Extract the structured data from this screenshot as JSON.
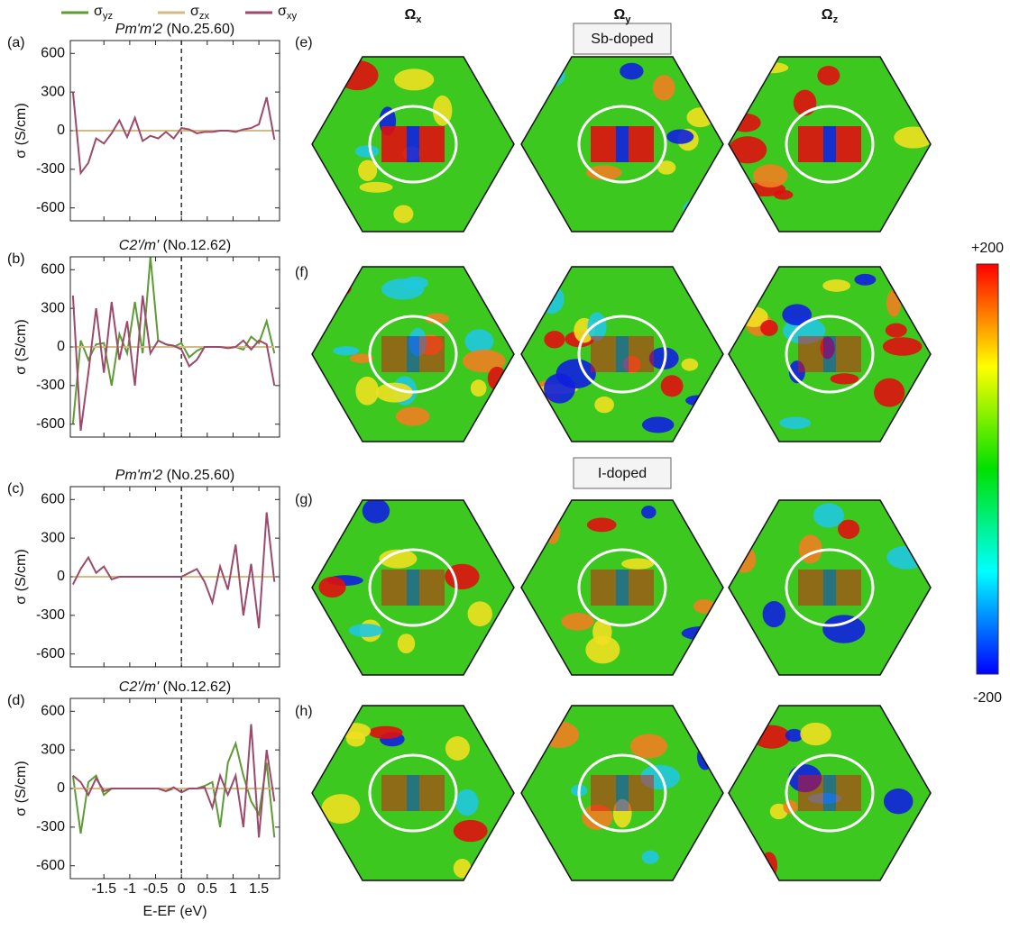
{
  "chart_data": [
    {
      "type": "line",
      "label": "(a)",
      "title": "Pm'm'2 (No.25.60)",
      "y_label": "σ (S/cm)",
      "x": [
        -2.1,
        -1.95,
        -1.8,
        -1.65,
        -1.5,
        -1.35,
        -1.2,
        -1.05,
        -0.9,
        -0.75,
        -0.6,
        -0.45,
        -0.3,
        -0.15,
        0,
        0.15,
        0.3,
        0.45,
        0.6,
        0.75,
        0.9,
        1.05,
        1.2,
        1.35,
        1.5,
        1.65,
        1.8
      ],
      "series": [
        {
          "name": "σyz",
          "color": "#5e9a36",
          "values": [
            0,
            0,
            0,
            0,
            0,
            0,
            0,
            0,
            0,
            0,
            0,
            0,
            0,
            0,
            0,
            0,
            0,
            0,
            0,
            0,
            0,
            0,
            0,
            0,
            0,
            0,
            0
          ]
        },
        {
          "name": "σzx",
          "color": "#d4bb86",
          "values": [
            0,
            0,
            0,
            0,
            0,
            0,
            0,
            0,
            0,
            0,
            0,
            0,
            0,
            0,
            0,
            0,
            0,
            0,
            0,
            0,
            0,
            0,
            0,
            0,
            0,
            0,
            0
          ]
        },
        {
          "name": "σxy",
          "color": "#9b4a6b",
          "values": [
            300,
            -330,
            -250,
            -60,
            -100,
            -20,
            80,
            -50,
            100,
            -80,
            -40,
            -60,
            -10,
            -60,
            20,
            10,
            -20,
            -10,
            -10,
            0,
            0,
            -10,
            10,
            20,
            50,
            260,
            -70
          ]
        }
      ],
      "xlim": [
        -2.15,
        1.9
      ],
      "ylim": [
        -700,
        700
      ],
      "xticks": [
        -1.5,
        -1,
        -0.5,
        0,
        0.5,
        1,
        1.5
      ],
      "yticks": [
        -600,
        -300,
        0,
        300,
        600
      ]
    },
    {
      "type": "line",
      "label": "(b)",
      "title": "C2'/m' (No.12.62)",
      "y_label": "σ (S/cm)",
      "x": [
        -2.1,
        -1.95,
        -1.8,
        -1.65,
        -1.5,
        -1.35,
        -1.2,
        -1.05,
        -0.9,
        -0.75,
        -0.6,
        -0.45,
        -0.3,
        -0.15,
        0,
        0.15,
        0.3,
        0.45,
        0.6,
        0.75,
        0.9,
        1.05,
        1.2,
        1.35,
        1.5,
        1.65,
        1.8
      ],
      "series": [
        {
          "color": "#5e9a36",
          "values": [
            -600,
            50,
            -100,
            20,
            30,
            -300,
            100,
            -50,
            350,
            -50,
            700,
            50,
            20,
            0,
            30,
            -80,
            -30,
            0,
            0,
            0,
            0,
            0,
            -20,
            80,
            30,
            200,
            -50
          ]
        },
        {
          "color": "#d4bb86",
          "values": [
            0,
            0,
            0,
            0,
            0,
            0,
            0,
            0,
            0,
            0,
            0,
            0,
            0,
            0,
            0,
            0,
            0,
            0,
            0,
            0,
            0,
            0,
            0,
            0,
            0,
            0,
            0
          ]
        },
        {
          "color": "#9b4a6b",
          "values": [
            400,
            -650,
            -200,
            300,
            -200,
            350,
            -100,
            200,
            -300,
            400,
            -50,
            50,
            20,
            10,
            -20,
            -150,
            -100,
            0,
            0,
            0,
            -10,
            0,
            50,
            -20,
            50,
            20,
            -300
          ]
        }
      ],
      "xlim": [
        -2.15,
        1.9
      ],
      "ylim": [
        -700,
        700
      ],
      "xticks": [
        -1.5,
        -1,
        -0.5,
        0,
        0.5,
        1,
        1.5
      ],
      "yticks": [
        -600,
        -300,
        0,
        300,
        600
      ]
    },
    {
      "type": "line",
      "label": "(c)",
      "title": "Pm'm'2 (No.25.60)",
      "y_label": "σ (S/cm)",
      "x": [
        -2.1,
        -1.95,
        -1.8,
        -1.65,
        -1.5,
        -1.35,
        -1.2,
        -1.05,
        -0.9,
        -0.75,
        -0.6,
        -0.45,
        -0.3,
        -0.15,
        0,
        0.15,
        0.3,
        0.45,
        0.6,
        0.75,
        0.9,
        1.05,
        1.2,
        1.35,
        1.5,
        1.65,
        1.8
      ],
      "series": [
        {
          "color": "#5e9a36",
          "values": [
            0,
            0,
            0,
            0,
            0,
            0,
            0,
            0,
            0,
            0,
            0,
            0,
            0,
            0,
            0,
            0,
            0,
            0,
            0,
            0,
            0,
            0,
            0,
            0,
            0,
            0,
            0
          ]
        },
        {
          "color": "#d4bb86",
          "values": [
            0,
            0,
            0,
            0,
            0,
            0,
            0,
            0,
            0,
            0,
            0,
            0,
            0,
            0,
            0,
            0,
            0,
            0,
            0,
            0,
            0,
            0,
            0,
            0,
            0,
            0,
            0
          ]
        },
        {
          "color": "#9b4a6b",
          "values": [
            -60,
            60,
            150,
            30,
            80,
            -20,
            0,
            0,
            0,
            0,
            0,
            0,
            0,
            0,
            0,
            30,
            60,
            -40,
            -200,
            80,
            -100,
            250,
            -300,
            100,
            -400,
            500,
            -40
          ]
        }
      ],
      "xlim": [
        -2.15,
        1.9
      ],
      "ylim": [
        -700,
        700
      ],
      "xticks": [
        -1.5,
        -1,
        -0.5,
        0,
        0.5,
        1,
        1.5
      ],
      "yticks": [
        -600,
        -300,
        0,
        300,
        600
      ]
    },
    {
      "type": "line",
      "label": "(d)",
      "title": "C2'/m' (No.12.62)",
      "y_label": "σ (S/cm)",
      "x_label": "E-EF (eV)",
      "x": [
        -2.1,
        -1.95,
        -1.8,
        -1.65,
        -1.5,
        -1.35,
        -1.2,
        -1.05,
        -0.9,
        -0.75,
        -0.6,
        -0.45,
        -0.3,
        -0.15,
        0,
        0.15,
        0.3,
        0.45,
        0.6,
        0.75,
        0.9,
        1.05,
        1.2,
        1.35,
        1.5,
        1.65,
        1.8
      ],
      "series": [
        {
          "color": "#5e9a36",
          "values": [
            100,
            -350,
            50,
            100,
            -50,
            0,
            0,
            0,
            0,
            0,
            0,
            0,
            -20,
            0,
            0,
            0,
            0,
            20,
            50,
            -300,
            200,
            350,
            100,
            -100,
            -200,
            200,
            -380
          ]
        },
        {
          "color": "#d4bb86",
          "values": [
            0,
            0,
            0,
            0,
            0,
            0,
            0,
            0,
            0,
            0,
            0,
            0,
            0,
            0,
            0,
            0,
            0,
            0,
            0,
            0,
            0,
            0,
            0,
            0,
            0,
            0,
            0
          ]
        },
        {
          "color": "#9b4a6b",
          "values": [
            100,
            50,
            -50,
            80,
            -20,
            0,
            0,
            0,
            0,
            0,
            0,
            0,
            -20,
            10,
            -30,
            0,
            0,
            10,
            -150,
            100,
            -50,
            100,
            -300,
            500,
            -380,
            300,
            -100
          ]
        }
      ],
      "xlim": [
        -2.15,
        1.9
      ],
      "ylim": [
        -700,
        700
      ],
      "xticks": [
        -1.5,
        -1,
        -0.5,
        0,
        0.5,
        1,
        1.5
      ],
      "yticks": [
        -600,
        -300,
        0,
        300,
        600
      ]
    }
  ],
  "surfaces": {
    "column_headers": [
      "Ωx",
      "Ωy",
      "Ωz"
    ],
    "panel_labels": [
      "(e)",
      "(f)",
      "(g)",
      "(h)"
    ],
    "groups": [
      "Sb-doped",
      "I-doped"
    ]
  },
  "colorbar": {
    "top_label": "+200",
    "bottom_label": "-200"
  }
}
